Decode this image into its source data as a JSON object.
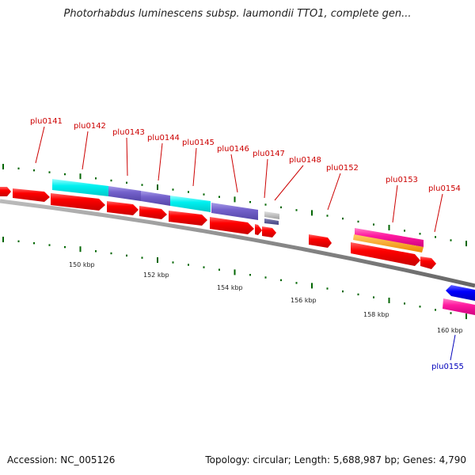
{
  "title": "Photorhabdus luminescens subsp. laumondii TTO1, complete gen...",
  "footer": {
    "accession": "Accession: NC_005126",
    "summary": "Topology: circular; Length: 5,688,987 bp; Genes: 4,790"
  },
  "ruler_labels": [
    "150 kbp",
    "152 kbp",
    "154 kbp",
    "156 kbp",
    "158 kbp",
    "160 kbp"
  ],
  "gene_labels": [
    "plu0141",
    "plu0142",
    "plu0143",
    "plu0144",
    "plu0145",
    "plu0146",
    "plu0147",
    "plu0148",
    "plu0152",
    "plu0153",
    "plu0154",
    "plu0155"
  ],
  "colors": {
    "cds": "#ff0000",
    "cyan_feature": "#00ffff",
    "purple_feature": "#7060c8",
    "magenta_feature": "#ff20a0",
    "orange_feature": "#ff9900",
    "blue_feature": "#0000ff",
    "gray_feature": "#b0b0b0",
    "backbone": "#888888",
    "tick": "#006600",
    "forward_label": "#cc0000",
    "reverse_label": "#0000bb"
  }
}
